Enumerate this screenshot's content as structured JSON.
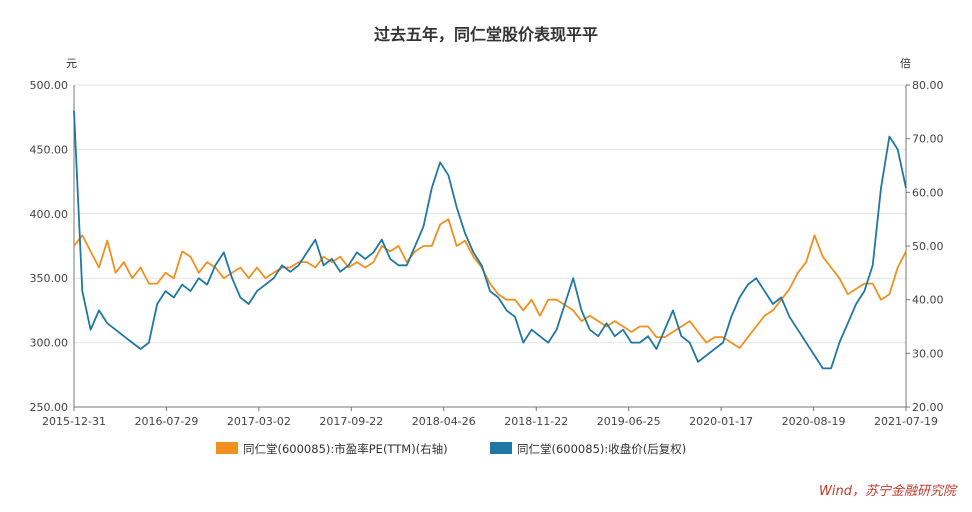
{
  "chart_data": {
    "type": "line",
    "title": "过去五年，同仁堂股价表现平平",
    "left_axis": {
      "unit": "元",
      "ylim": [
        250,
        500
      ],
      "ticks": [
        "250.00",
        "300.00",
        "350.00",
        "400.00",
        "450.00",
        "500.00"
      ],
      "tick_values": [
        250,
        300,
        350,
        400,
        450,
        500
      ]
    },
    "right_axis": {
      "unit": "倍",
      "ylim": [
        20,
        80
      ],
      "ticks": [
        "20.00",
        "30.00",
        "40.00",
        "50.00",
        "60.00",
        "70.00",
        "80.00"
      ],
      "tick_values": [
        20,
        30,
        40,
        50,
        60,
        70,
        80
      ]
    },
    "x_ticks": [
      "2015-12-31",
      "2016-07-29",
      "2017-03-02",
      "2017-09-22",
      "2018-04-26",
      "2018-11-22",
      "2019-06-25",
      "2020-01-17",
      "2020-08-19",
      "2021-07-19"
    ],
    "x_tick_positions": [
      0,
      0.1111,
      0.2222,
      0.3333,
      0.4444,
      0.5556,
      0.6667,
      0.7778,
      0.8889,
      1.0
    ],
    "series": [
      {
        "name": "同仁堂(600085):市盈率PE(TTM)(右轴)",
        "color": "#f0901e",
        "axis": "right",
        "x": [
          0.0,
          0.01,
          0.02,
          0.03,
          0.04,
          0.05,
          0.06,
          0.07,
          0.08,
          0.09,
          0.1,
          0.11,
          0.12,
          0.13,
          0.14,
          0.15,
          0.16,
          0.17,
          0.18,
          0.19,
          0.2,
          0.21,
          0.22,
          0.23,
          0.24,
          0.25,
          0.26,
          0.27,
          0.28,
          0.29,
          0.3,
          0.31,
          0.32,
          0.33,
          0.34,
          0.35,
          0.36,
          0.37,
          0.38,
          0.39,
          0.4,
          0.41,
          0.42,
          0.43,
          0.44,
          0.45,
          0.46,
          0.47,
          0.48,
          0.49,
          0.5,
          0.51,
          0.52,
          0.53,
          0.54,
          0.55,
          0.56,
          0.57,
          0.58,
          0.59,
          0.6,
          0.61,
          0.62,
          0.63,
          0.64,
          0.65,
          0.66,
          0.67,
          0.68,
          0.69,
          0.7,
          0.71,
          0.72,
          0.73,
          0.74,
          0.75,
          0.76,
          0.77,
          0.78,
          0.79,
          0.8,
          0.81,
          0.82,
          0.83,
          0.84,
          0.85,
          0.86,
          0.87,
          0.88,
          0.89,
          0.9,
          0.91,
          0.92,
          0.93,
          0.94,
          0.95,
          0.96,
          0.97,
          0.98,
          0.99,
          1.0
        ],
        "values": [
          50,
          52,
          49,
          46,
          51,
          45,
          47,
          44,
          46,
          43,
          43,
          45,
          44,
          49,
          48,
          45,
          47,
          46,
          44,
          45,
          46,
          44,
          46,
          44,
          45,
          46,
          46,
          47,
          47,
          46,
          48,
          47,
          48,
          46,
          47,
          46,
          47,
          50,
          49,
          50,
          47,
          49,
          50,
          50,
          54,
          55,
          50,
          51,
          48,
          46,
          43,
          41,
          40,
          40,
          38,
          40,
          37,
          40,
          40,
          39,
          38,
          36,
          37,
          36,
          35,
          36,
          35,
          34,
          35,
          35,
          33,
          33,
          34,
          35,
          36,
          34,
          32,
          33,
          33,
          32,
          31,
          33,
          35,
          37,
          38,
          40,
          42,
          45,
          47,
          52,
          48,
          46,
          44,
          41,
          42,
          43,
          43,
          40,
          41,
          46,
          49
        ]
      },
      {
        "name": "同仁堂(600085):收盘价(后复权)",
        "color": "#1f77a4",
        "axis": "left",
        "x": [
          0.0,
          0.01,
          0.02,
          0.03,
          0.04,
          0.05,
          0.06,
          0.07,
          0.08,
          0.09,
          0.1,
          0.11,
          0.12,
          0.13,
          0.14,
          0.15,
          0.16,
          0.17,
          0.18,
          0.19,
          0.2,
          0.21,
          0.22,
          0.23,
          0.24,
          0.25,
          0.26,
          0.27,
          0.28,
          0.29,
          0.3,
          0.31,
          0.32,
          0.33,
          0.34,
          0.35,
          0.36,
          0.37,
          0.38,
          0.39,
          0.4,
          0.41,
          0.42,
          0.43,
          0.44,
          0.45,
          0.46,
          0.47,
          0.48,
          0.49,
          0.5,
          0.51,
          0.52,
          0.53,
          0.54,
          0.55,
          0.56,
          0.57,
          0.58,
          0.59,
          0.6,
          0.61,
          0.62,
          0.63,
          0.64,
          0.65,
          0.66,
          0.67,
          0.68,
          0.69,
          0.7,
          0.71,
          0.72,
          0.73,
          0.74,
          0.75,
          0.76,
          0.77,
          0.78,
          0.79,
          0.8,
          0.81,
          0.82,
          0.83,
          0.84,
          0.85,
          0.86,
          0.87,
          0.88,
          0.89,
          0.9,
          0.91,
          0.92,
          0.93,
          0.94,
          0.95,
          0.96,
          0.97,
          0.98,
          0.99,
          1.0
        ],
        "values": [
          480,
          340,
          310,
          325,
          315,
          310,
          305,
          300,
          295,
          300,
          330,
          340,
          335,
          345,
          340,
          350,
          345,
          360,
          370,
          350,
          335,
          330,
          340,
          345,
          350,
          360,
          355,
          360,
          370,
          380,
          360,
          365,
          355,
          360,
          370,
          365,
          370,
          380,
          365,
          360,
          360,
          375,
          390,
          420,
          440,
          430,
          405,
          385,
          370,
          360,
          340,
          335,
          325,
          320,
          300,
          310,
          305,
          300,
          310,
          330,
          350,
          325,
          310,
          305,
          315,
          305,
          310,
          300,
          300,
          305,
          295,
          310,
          325,
          305,
          300,
          285,
          290,
          295,
          300,
          320,
          335,
          345,
          350,
          340,
          330,
          335,
          320,
          310,
          300,
          290,
          280,
          280,
          300,
          315,
          330,
          340,
          360,
          420,
          460,
          450,
          420
        ]
      }
    ],
    "legend": [
      "同仁堂(600085):市盈率PE(TTM)(右轴)",
      "同仁堂(600085):收盘价(后复权)"
    ],
    "legend_position": "bottom-center",
    "grid": true
  },
  "source_label": "Wind，苏宁金融研究院"
}
